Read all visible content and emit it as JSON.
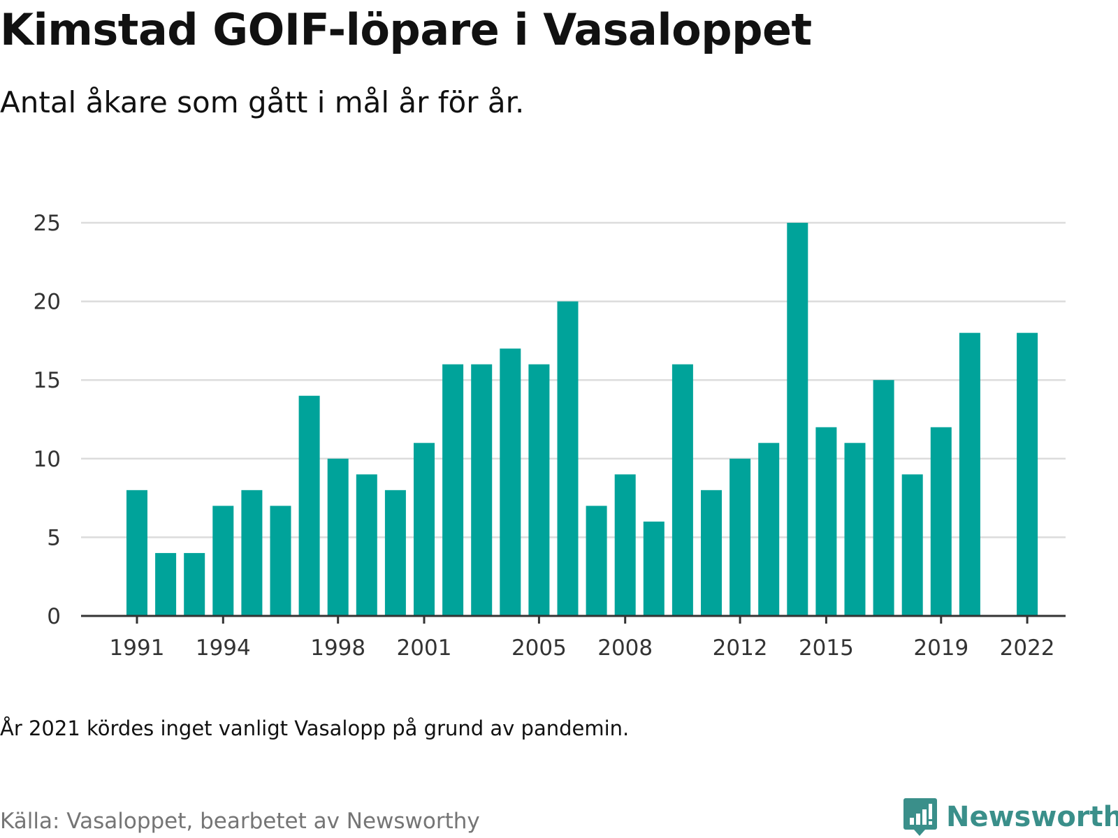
{
  "title": "Kimstad GOIF-löpare i Vasaloppet",
  "subtitle": "Antal åkare som gått i mål år för år.",
  "note": "År 2021 kördes inget vanligt Vasalopp på grund av pandemin.",
  "source": "Källa: Vasaloppet, bearbetet av Newsworthy",
  "brand": {
    "name": "Newsworthy",
    "icon": "bar-chart-speech-icon",
    "color": "#3a8f8a"
  },
  "chart_data": {
    "type": "bar",
    "categories": [
      "1991",
      "1992",
      "1993",
      "1994",
      "1995",
      "1996",
      "1997",
      "1998",
      "1999",
      "2000",
      "2001",
      "2002",
      "2003",
      "2004",
      "2005",
      "2006",
      "2007",
      "2008",
      "2009",
      "2010",
      "2011",
      "2012",
      "2013",
      "2014",
      "2015",
      "2016",
      "2017",
      "2018",
      "2019",
      "2020",
      "2021",
      "2022"
    ],
    "values": [
      8,
      4,
      4,
      7,
      8,
      7,
      14,
      10,
      9,
      8,
      11,
      16,
      16,
      17,
      16,
      20,
      7,
      9,
      6,
      16,
      8,
      10,
      11,
      25,
      12,
      11,
      15,
      9,
      12,
      18,
      null,
      18
    ],
    "x_tick_labels": [
      "1991",
      "1994",
      "1998",
      "2001",
      "2005",
      "2008",
      "2012",
      "2015",
      "2019",
      "2022"
    ],
    "y_ticks": [
      0,
      5,
      10,
      15,
      20,
      25
    ],
    "ylim": [
      0,
      25
    ],
    "xlabel": "",
    "ylabel": "",
    "grid": true,
    "bar_color": "#00a39a"
  }
}
